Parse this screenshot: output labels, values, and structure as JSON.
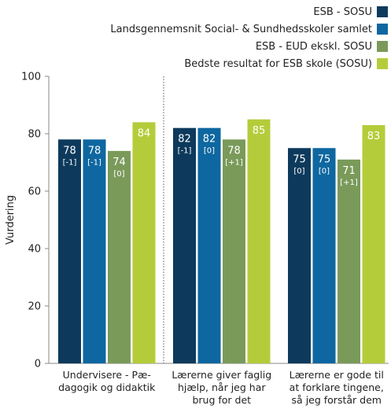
{
  "chart_data": {
    "type": "bar",
    "ylabel": "Vurdering",
    "ylim": [
      0,
      100
    ],
    "yticks": [
      0,
      20,
      40,
      60,
      80,
      100
    ],
    "grid": false,
    "legend_position": "top-right",
    "categories": [
      [
        "Undervisere - Pæ-",
        "dagogik og didaktik"
      ],
      [
        "Lærerne giver faglig",
        "hjælp, når jeg har",
        "brug for det"
      ],
      [
        "Lærerne er gode til",
        "at forklare tingene,",
        "så jeg forstår dem"
      ]
    ],
    "series": [
      {
        "name": "ESB - SOSU",
        "color": "#0d3a5c",
        "values": [
          78,
          82,
          75
        ],
        "changes": [
          "[-1]",
          "[-1]",
          "[0]"
        ]
      },
      {
        "name": "Landsgennemsnit Social- & Sundhedsskoler samlet",
        "color": "#0e67a0",
        "values": [
          78,
          82,
          75
        ],
        "changes": [
          "[-1]",
          "[0]",
          "[0]"
        ]
      },
      {
        "name": "ESB - EUD ekskl. SOSU",
        "color": "#7a9a5a",
        "values": [
          74,
          78,
          71
        ],
        "changes": [
          "[0]",
          "[+1]",
          "[+1]"
        ]
      },
      {
        "name": "Bedste resultat for ESB skole (SOSU)",
        "color": "#b5cc3a",
        "values": [
          84,
          85,
          83
        ],
        "changes": [
          "",
          "",
          ""
        ]
      }
    ]
  }
}
